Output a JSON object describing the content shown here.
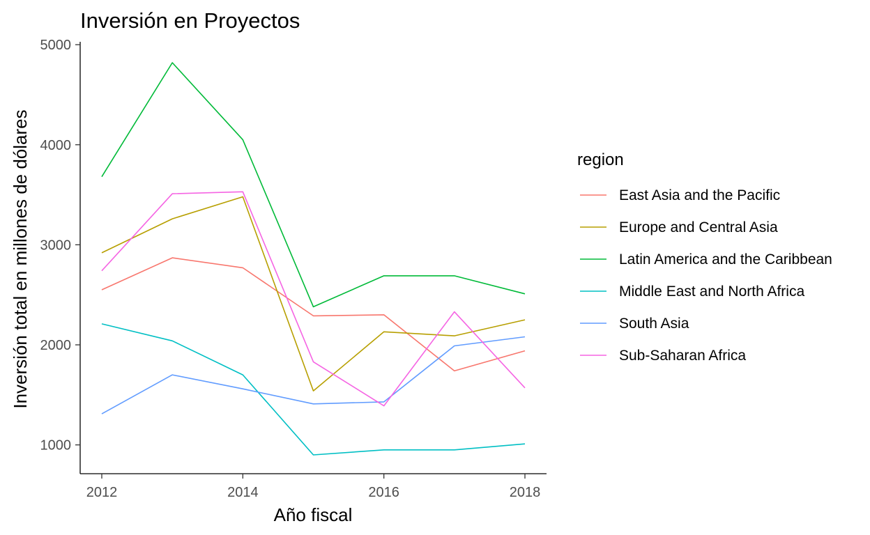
{
  "chart_data": {
    "type": "line",
    "title": "Inversión en Proyectos",
    "xlabel": "Año fiscal",
    "ylabel": "Inversión total en millones de dólares",
    "x": [
      2012,
      2013,
      2014,
      2015,
      2016,
      2017,
      2018
    ],
    "xlim": [
      2012,
      2018
    ],
    "ylim": [
      900,
      4820
    ],
    "x_ticks": [
      2012,
      2014,
      2016,
      2018
    ],
    "y_ticks": [
      1000,
      2000,
      3000,
      4000,
      5000
    ],
    "grid": false,
    "legend": {
      "title": "region",
      "position": "right"
    },
    "series": [
      {
        "name": "East Asia and the Pacific",
        "color": "#F8766D",
        "values": [
          2550,
          2870,
          2770,
          2290,
          2300,
          1740,
          1940
        ]
      },
      {
        "name": "Europe and Central Asia",
        "color": "#B79F00",
        "values": [
          2920,
          3260,
          3480,
          1540,
          2130,
          2090,
          2250
        ]
      },
      {
        "name": "Latin America and the Caribbean",
        "color": "#00BA38",
        "values": [
          3680,
          4820,
          4050,
          2380,
          2690,
          2690,
          2510
        ]
      },
      {
        "name": "Middle East and North Africa",
        "color": "#00BFC4",
        "values": [
          2210,
          2040,
          1700,
          900,
          950,
          950,
          1010
        ]
      },
      {
        "name": "South Asia",
        "color": "#619CFF",
        "values": [
          1310,
          1700,
          1560,
          1410,
          1430,
          1990,
          2080
        ]
      },
      {
        "name": "Sub-Saharan Africa",
        "color": "#F564E3",
        "values": [
          2740,
          3510,
          3530,
          1830,
          1390,
          2330,
          1570
        ]
      }
    ]
  }
}
